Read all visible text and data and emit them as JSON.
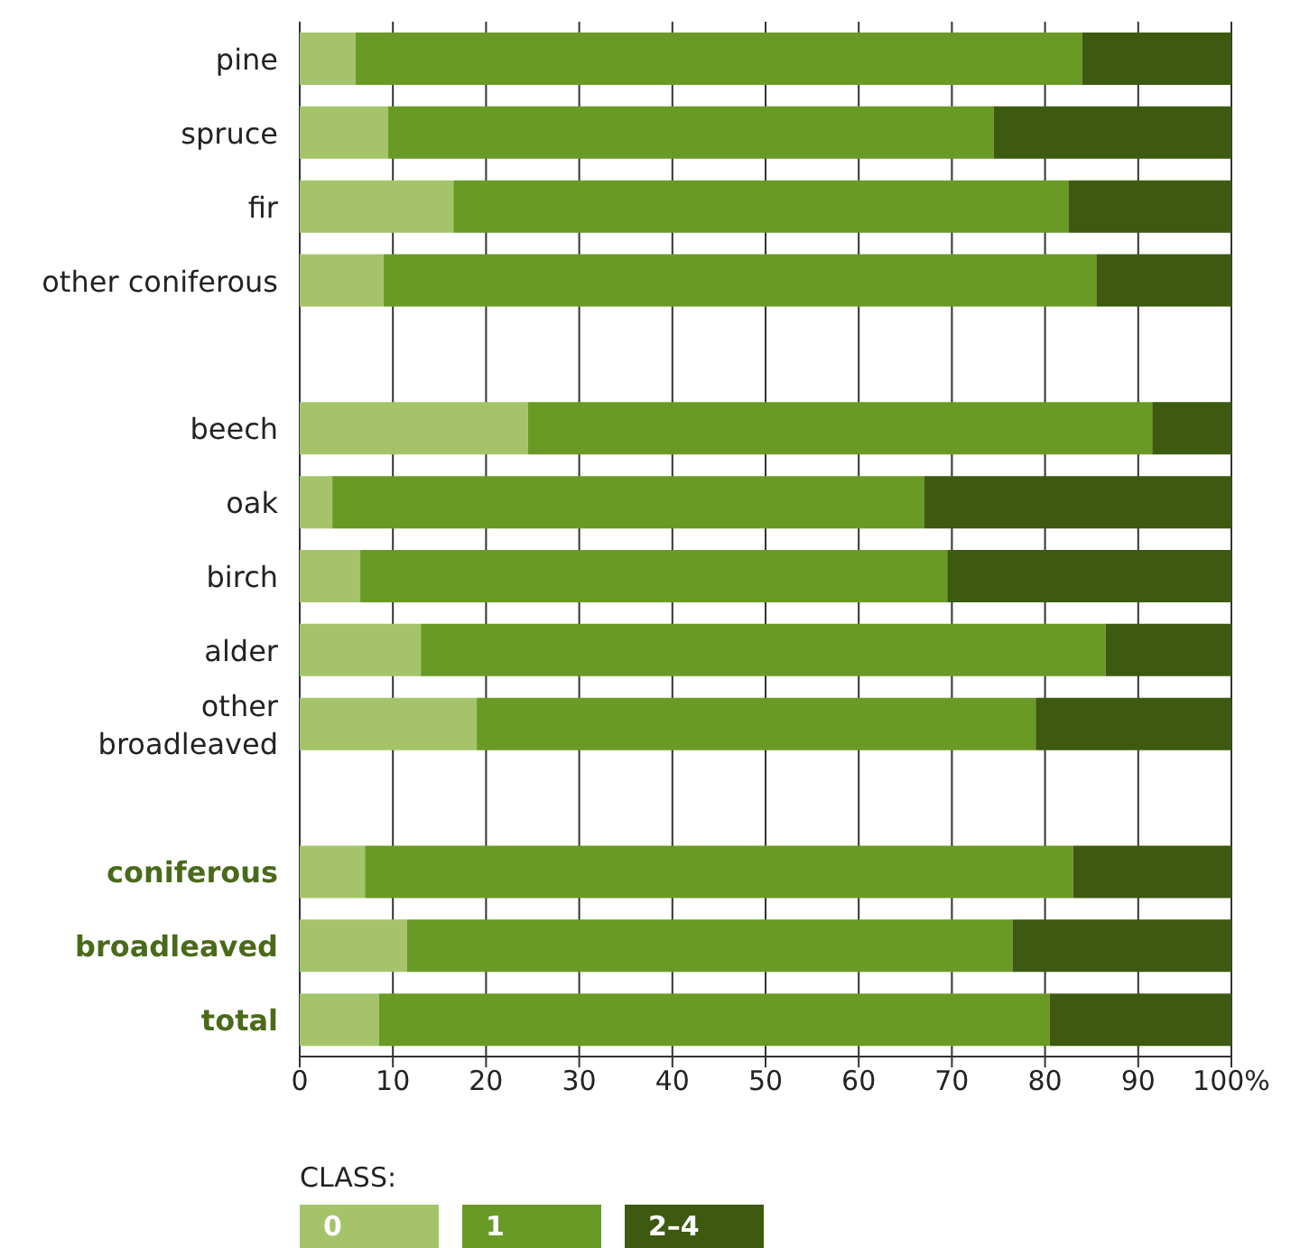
{
  "chart_data": {
    "type": "bar",
    "orientation": "horizontal",
    "stacked": true,
    "categories": [
      "pine",
      "spruce",
      "fir",
      "other coniferous",
      null,
      "beech",
      "oak",
      "birch",
      "alder",
      "other broadleaved",
      null,
      "coniferous",
      "broadleaved",
      "total"
    ],
    "series": [
      {
        "name": "0",
        "color": "#a5c46a",
        "values": [
          6,
          9.5,
          16.5,
          9,
          null,
          24.5,
          3.5,
          6.5,
          13,
          19,
          null,
          7,
          11.5,
          8.5
        ]
      },
      {
        "name": "1",
        "color": "#6a9a26",
        "values": [
          78,
          65,
          66,
          76.5,
          null,
          67,
          63.5,
          63,
          73.5,
          60,
          null,
          76,
          65,
          72
        ]
      },
      {
        "name": "2–4",
        "color": "#3d5a10",
        "values": [
          16,
          25.5,
          17.5,
          14.5,
          null,
          8.5,
          33,
          30.5,
          13.5,
          21,
          null,
          17,
          23.5,
          19.5
        ]
      }
    ],
    "xlim": [
      0,
      100
    ],
    "xticks": [
      0,
      10,
      20,
      30,
      40,
      50,
      60,
      70,
      80,
      90,
      {
        "value": 100,
        "label": "100%"
      }
    ],
    "grid": "x",
    "legend": "bottom",
    "legend_title": "CLASS:"
  }
}
